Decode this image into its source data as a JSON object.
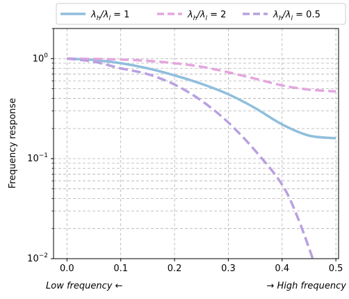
{
  "chart_data": {
    "type": "line",
    "xlabel": "",
    "ylabel": "Frequency response",
    "xlim": [
      -0.025,
      0.505
    ],
    "ylim": [
      0.01,
      2.0
    ],
    "yscale": "log",
    "grid": true,
    "legend_position": "top, outside plot",
    "x_ticks": [
      {
        "value": 0.0,
        "label": "0.0"
      },
      {
        "value": 0.1,
        "label": "0.1"
      },
      {
        "value": 0.2,
        "label": "0.2"
      },
      {
        "value": 0.3,
        "label": "0.3"
      },
      {
        "value": 0.4,
        "label": "0.4"
      },
      {
        "value": 0.5,
        "label": "0.5"
      }
    ],
    "y_ticks": [
      {
        "value": 1.0,
        "base": "10",
        "exp": "0"
      },
      {
        "value": 0.1,
        "base": "10",
        "exp": "−1"
      },
      {
        "value": 0.01,
        "base": "10",
        "exp": "−2"
      }
    ],
    "low_label": "Low frequency ←",
    "high_label": "→ High frequency",
    "series": [
      {
        "name": "λh/λl = 1",
        "legend": {
          "main": "λ",
          "sub1": "h",
          "slash": "/λ",
          "sub2": "l",
          "rest": " = 1"
        },
        "color": "#8fbedd",
        "dash": "solid",
        "x": [
          0.0,
          0.05,
          0.1,
          0.15,
          0.2,
          0.25,
          0.3,
          0.35,
          0.4,
          0.45,
          0.5
        ],
        "values": [
          1.0,
          0.97,
          0.9,
          0.8,
          0.68,
          0.56,
          0.44,
          0.32,
          0.22,
          0.17,
          0.16
        ]
      },
      {
        "name": "λh/λl = 2",
        "legend": {
          "main": "λ",
          "sub1": "h",
          "slash": "/λ",
          "sub2": "l",
          "rest": " = 2"
        },
        "color": "#e3a6de",
        "dash": "dashed",
        "x": [
          0.0,
          0.05,
          0.1,
          0.15,
          0.2,
          0.25,
          0.3,
          0.35,
          0.4,
          0.45,
          0.5
        ],
        "values": [
          1.0,
          0.995,
          0.98,
          0.95,
          0.9,
          0.83,
          0.73,
          0.63,
          0.54,
          0.49,
          0.47
        ]
      },
      {
        "name": "λh/λl = 0.5",
        "legend": {
          "main": "λ",
          "sub1": "h",
          "slash": "/λ",
          "sub2": "l",
          "rest": " = 0.5"
        },
        "color": "#b9a0e0",
        "dash": "dashed",
        "x": [
          0.0,
          0.05,
          0.1,
          0.15,
          0.2,
          0.25,
          0.3,
          0.35,
          0.4,
          0.43,
          0.46
        ],
        "values": [
          1.0,
          0.93,
          0.8,
          0.7,
          0.55,
          0.38,
          0.23,
          0.12,
          0.055,
          0.025,
          0.009
        ]
      }
    ]
  }
}
